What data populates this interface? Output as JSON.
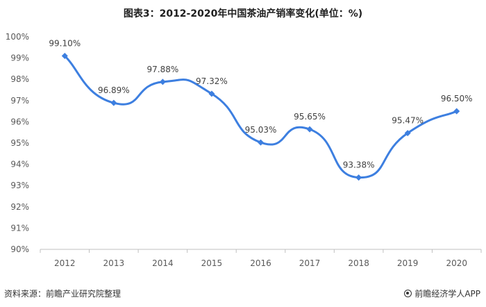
{
  "chart_data": {
    "type": "line",
    "title": "图表3：2012-2020年中国茶油产销率变化(单位：%)",
    "categories": [
      "2012",
      "2013",
      "2014",
      "2015",
      "2016",
      "2017",
      "2018",
      "2019",
      "2020"
    ],
    "series": [
      {
        "values": [
          99.1,
          96.89,
          97.88,
          97.32,
          95.03,
          95.65,
          93.38,
          95.47,
          96.5
        ]
      }
    ],
    "data_labels": [
      "99.10%",
      "96.89%",
      "97.88%",
      "97.32%",
      "95.03%",
      "95.65%",
      "93.38%",
      "95.47%",
      "96.50%"
    ],
    "yticks": [
      "90%",
      "91%",
      "92%",
      "93%",
      "94%",
      "95%",
      "96%",
      "97%",
      "98%",
      "99%",
      "100%"
    ],
    "ylim": [
      90,
      100
    ],
    "xlabel": "",
    "ylabel": "",
    "grid": false,
    "line_color": "#3d7fe0"
  },
  "footer": {
    "source": "资料来源：前瞻产业研究院整理",
    "brand": "前瞻经济学人APP"
  }
}
